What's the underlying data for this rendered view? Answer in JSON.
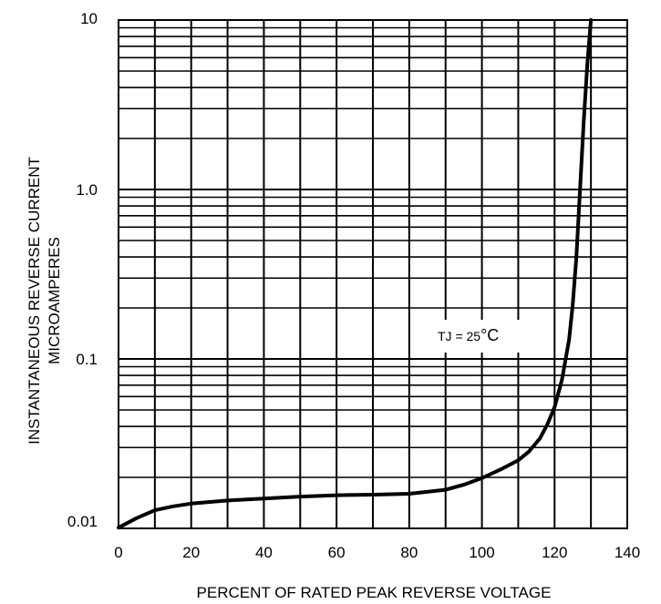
{
  "chart_data": {
    "type": "line",
    "xlabel": "PERCENT OF RATED PEAK REVERSE VOLTAGE",
    "ylabel_line1": "INSTANTANEOUS REVERSE CURRENT",
    "ylabel_line2": "MICROAMPERES",
    "y_scale": "log",
    "xlim": [
      0,
      140
    ],
    "ylim": [
      0.01,
      10
    ],
    "grid": true,
    "x_ticks": [
      "0",
      "20",
      "40",
      "60",
      "80",
      "100",
      "120",
      "140"
    ],
    "y_ticks": [
      "0.01",
      "0.1",
      "1.0",
      "10"
    ],
    "annotation": {
      "main": "TJ = 25",
      "deg": "°C"
    },
    "series": [
      {
        "x": [
          0,
          5,
          10,
          15,
          20,
          30,
          40,
          50,
          60,
          70,
          80,
          90,
          95,
          100,
          105,
          110,
          113,
          116,
          118,
          120,
          122,
          124,
          125,
          126,
          127,
          128,
          129,
          130
        ],
        "y": [
          0.0101,
          0.0115,
          0.0128,
          0.0135,
          0.014,
          0.0146,
          0.015,
          0.0154,
          0.0157,
          0.0158,
          0.016,
          0.0169,
          0.0181,
          0.0198,
          0.0222,
          0.0252,
          0.0285,
          0.034,
          0.041,
          0.052,
          0.075,
          0.13,
          0.21,
          0.4,
          1.0,
          2.5,
          5.5,
          10
        ]
      }
    ]
  }
}
